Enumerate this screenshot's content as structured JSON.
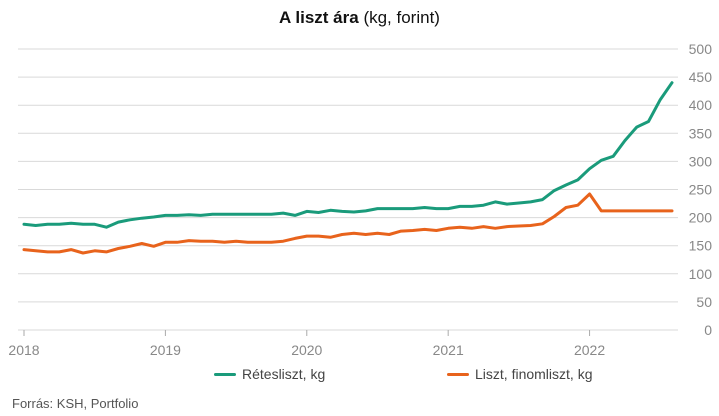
{
  "title": {
    "bold": "A liszt ára",
    "rest": " (kg, forint)"
  },
  "source": "Forrás: KSH, Portfolio",
  "colors": {
    "retesliszt": "#1a9b7b",
    "liszt": "#e8631c",
    "grid": "#d9d9d9",
    "tick": "#888888"
  },
  "chart_data": {
    "type": "line",
    "title": "A liszt ára (kg, forint)",
    "xlabel": "",
    "ylabel": "",
    "ylim": [
      0,
      500
    ],
    "yticks": [
      "0",
      "50",
      "100",
      "150",
      "200",
      "250",
      "300",
      "350",
      "400",
      "450",
      "500"
    ],
    "xticks": [
      {
        "label": "2018",
        "x": 2018.0
      },
      {
        "label": "2019",
        "x": 2019.0
      },
      {
        "label": "2020",
        "x": 2020.0
      },
      {
        "label": "2021",
        "x": 2021.0
      },
      {
        "label": "2022",
        "x": 2022.0
      }
    ],
    "xlim": [
      2018.0,
      2022.583
    ],
    "grid": true,
    "y_axis_side": "right",
    "legend_position": "bottom",
    "series": [
      {
        "name": "Rétesliszt, kg",
        "color_key": "retesliszt",
        "points": [
          [
            2018.0,
            188
          ],
          [
            2018.083,
            186
          ],
          [
            2018.167,
            188
          ],
          [
            2018.25,
            188
          ],
          [
            2018.333,
            190
          ],
          [
            2018.417,
            188
          ],
          [
            2018.5,
            188
          ],
          [
            2018.583,
            183
          ],
          [
            2018.667,
            192
          ],
          [
            2018.75,
            196
          ],
          [
            2018.833,
            199
          ],
          [
            2018.917,
            201
          ],
          [
            2019.0,
            204
          ],
          [
            2019.083,
            204
          ],
          [
            2019.167,
            205
          ],
          [
            2019.25,
            204
          ],
          [
            2019.333,
            206
          ],
          [
            2019.417,
            206
          ],
          [
            2019.5,
            206
          ],
          [
            2019.583,
            206
          ],
          [
            2019.667,
            206
          ],
          [
            2019.75,
            206
          ],
          [
            2019.833,
            208
          ],
          [
            2019.917,
            204
          ],
          [
            2020.0,
            211
          ],
          [
            2020.083,
            209
          ],
          [
            2020.167,
            213
          ],
          [
            2020.25,
            211
          ],
          [
            2020.333,
            210
          ],
          [
            2020.417,
            212
          ],
          [
            2020.5,
            216
          ],
          [
            2020.583,
            216
          ],
          [
            2020.667,
            216
          ],
          [
            2020.75,
            216
          ],
          [
            2020.833,
            218
          ],
          [
            2020.917,
            216
          ],
          [
            2021.0,
            216
          ],
          [
            2021.083,
            220
          ],
          [
            2021.167,
            220
          ],
          [
            2021.25,
            222
          ],
          [
            2021.333,
            228
          ],
          [
            2021.417,
            224
          ],
          [
            2021.5,
            226
          ],
          [
            2021.583,
            228
          ],
          [
            2021.667,
            232
          ],
          [
            2021.75,
            248
          ],
          [
            2021.833,
            258
          ],
          [
            2021.917,
            267
          ],
          [
            2022.0,
            287
          ],
          [
            2022.083,
            302
          ],
          [
            2022.167,
            309
          ],
          [
            2022.25,
            337
          ],
          [
            2022.333,
            361
          ],
          [
            2022.417,
            371
          ],
          [
            2022.5,
            410
          ],
          [
            2022.583,
            440
          ]
        ]
      },
      {
        "name": "Liszt, finomliszt, kg",
        "color_key": "liszt",
        "points": [
          [
            2018.0,
            143
          ],
          [
            2018.083,
            141
          ],
          [
            2018.167,
            139
          ],
          [
            2018.25,
            139
          ],
          [
            2018.333,
            143
          ],
          [
            2018.417,
            137
          ],
          [
            2018.5,
            141
          ],
          [
            2018.583,
            139
          ],
          [
            2018.667,
            145
          ],
          [
            2018.75,
            149
          ],
          [
            2018.833,
            154
          ],
          [
            2018.917,
            149
          ],
          [
            2019.0,
            156
          ],
          [
            2019.083,
            156
          ],
          [
            2019.167,
            159
          ],
          [
            2019.25,
            158
          ],
          [
            2019.333,
            158
          ],
          [
            2019.417,
            156
          ],
          [
            2019.5,
            158
          ],
          [
            2019.583,
            156
          ],
          [
            2019.667,
            156
          ],
          [
            2019.75,
            156
          ],
          [
            2019.833,
            158
          ],
          [
            2019.917,
            163
          ],
          [
            2020.0,
            167
          ],
          [
            2020.083,
            167
          ],
          [
            2020.167,
            165
          ],
          [
            2020.25,
            170
          ],
          [
            2020.333,
            172
          ],
          [
            2020.417,
            170
          ],
          [
            2020.5,
            172
          ],
          [
            2020.583,
            170
          ],
          [
            2020.667,
            176
          ],
          [
            2020.75,
            177
          ],
          [
            2020.833,
            179
          ],
          [
            2020.917,
            177
          ],
          [
            2021.0,
            181
          ],
          [
            2021.083,
            183
          ],
          [
            2021.167,
            181
          ],
          [
            2021.25,
            184
          ],
          [
            2021.333,
            181
          ],
          [
            2021.417,
            184
          ],
          [
            2021.5,
            185
          ],
          [
            2021.583,
            186
          ],
          [
            2021.667,
            189
          ],
          [
            2021.75,
            202
          ],
          [
            2021.833,
            218
          ],
          [
            2021.917,
            222
          ],
          [
            2022.0,
            242
          ],
          [
            2022.083,
            212
          ],
          [
            2022.167,
            212
          ],
          [
            2022.25,
            212
          ],
          [
            2022.333,
            212
          ],
          [
            2022.417,
            212
          ],
          [
            2022.5,
            212
          ],
          [
            2022.583,
            212
          ]
        ]
      }
    ]
  }
}
